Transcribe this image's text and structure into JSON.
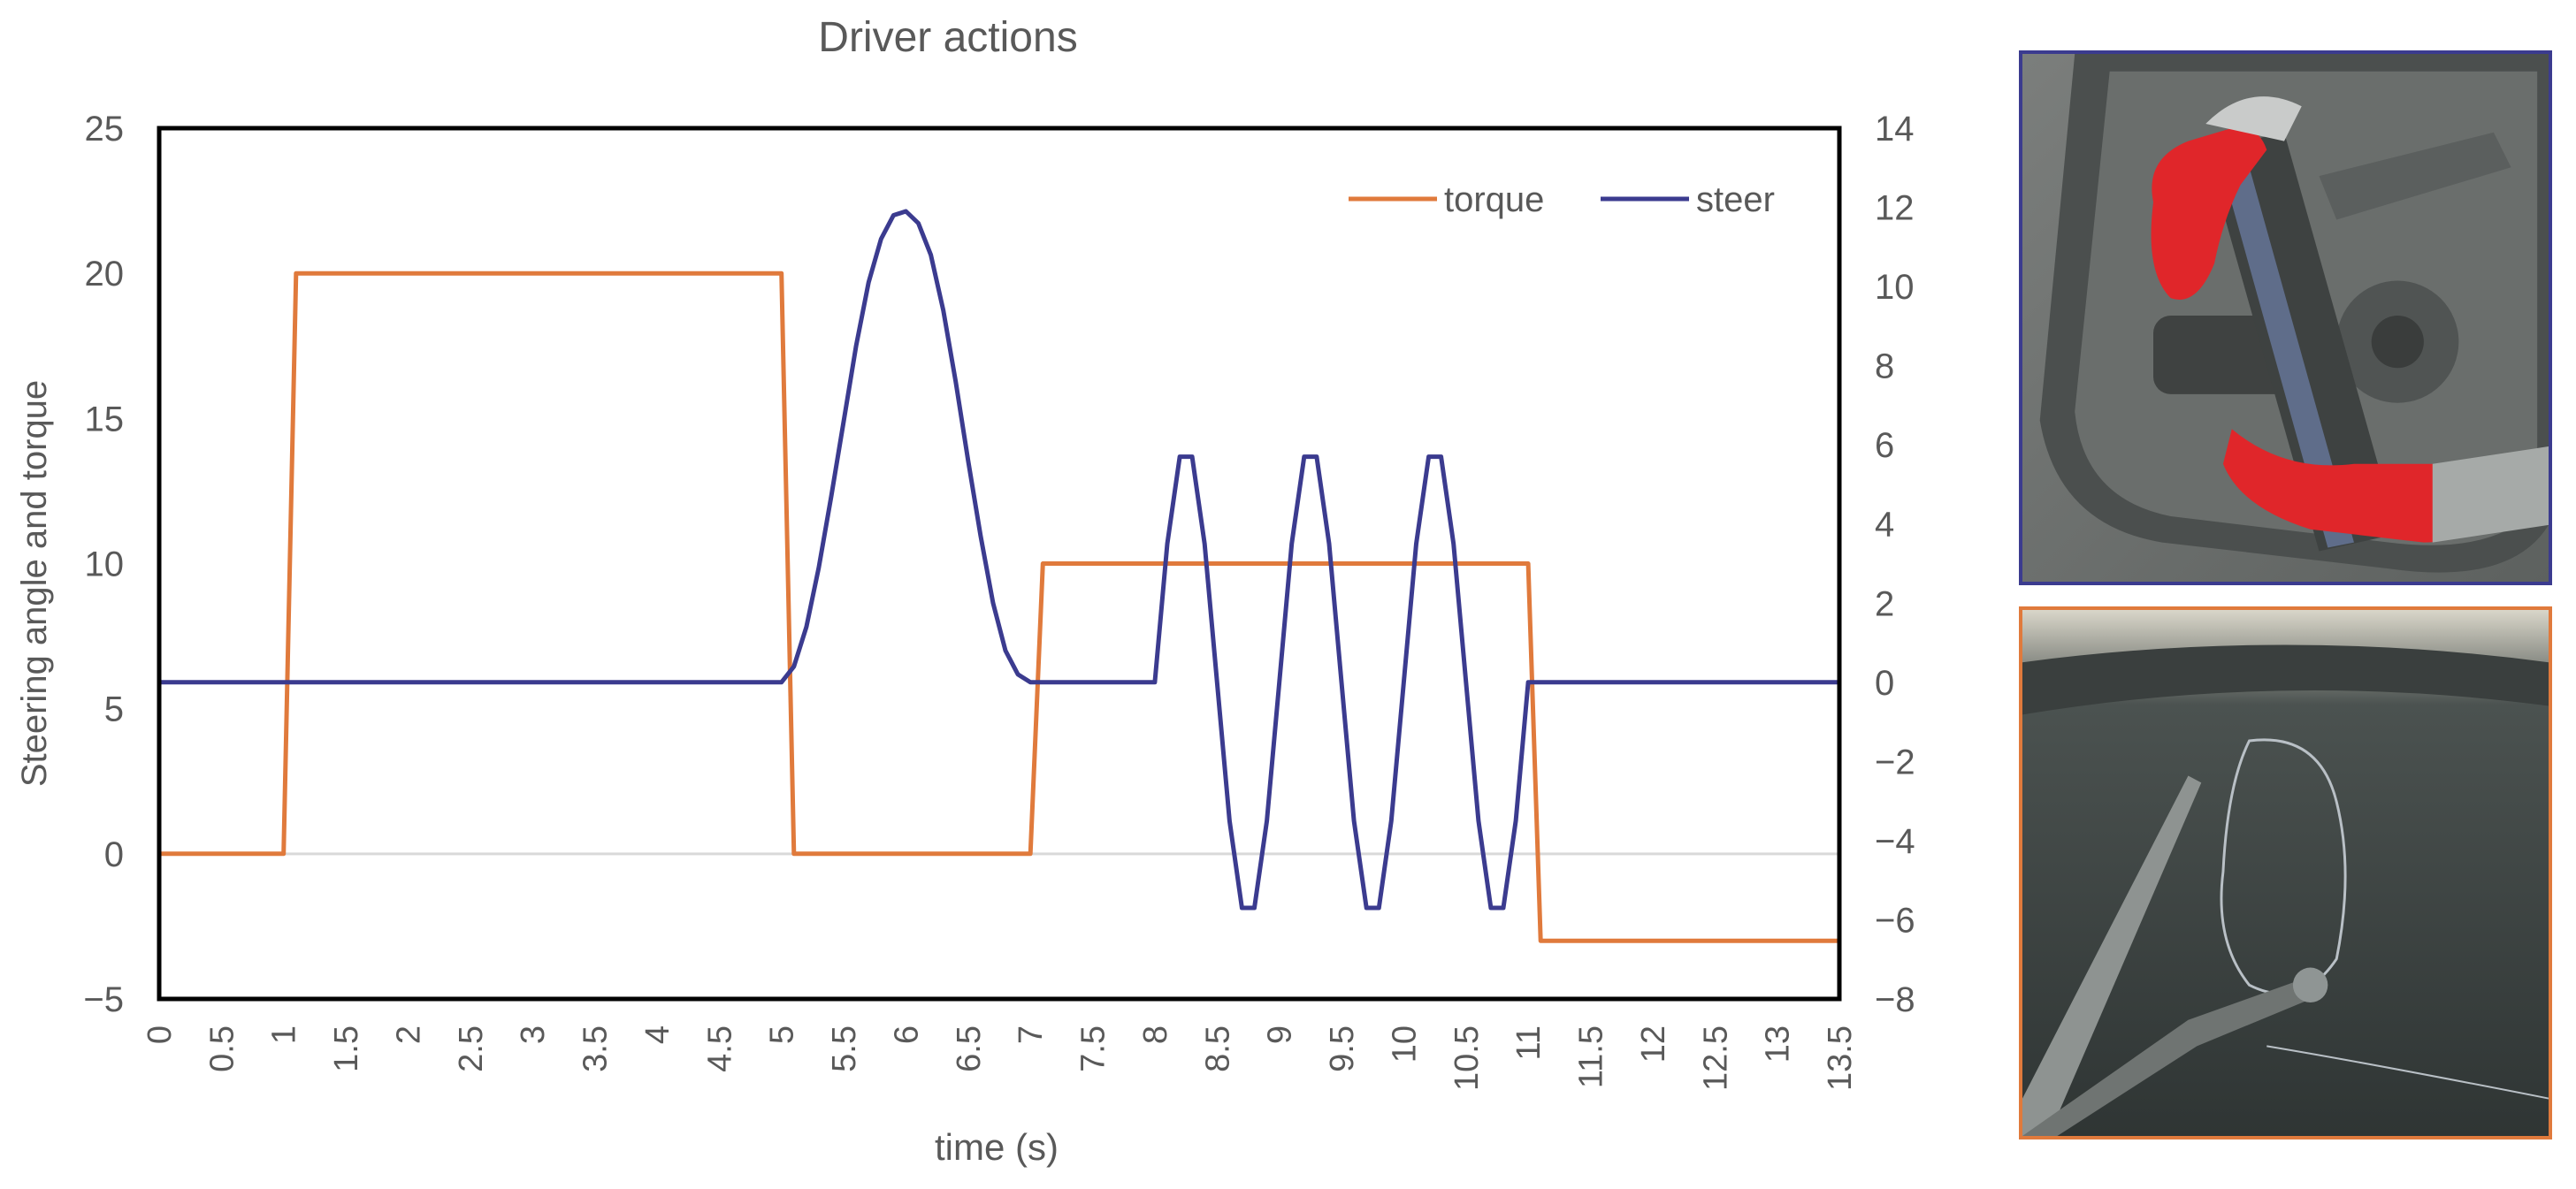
{
  "chart_data": {
    "type": "line",
    "title": "Driver actions",
    "xlabel": "time (s)",
    "ylabel": "Steering angle and torque",
    "y2label": "",
    "xlim": [
      0,
      13.5
    ],
    "ylim": [
      -5,
      25
    ],
    "y2lim": [
      -8,
      14
    ],
    "x_ticks": [
      "0",
      "0.5",
      "1",
      "1.5",
      "2",
      "2.5",
      "3",
      "3.5",
      "4",
      "4.5",
      "5",
      "5.5",
      "6",
      "6.5",
      "7",
      "7.5",
      "8",
      "8.5",
      "9",
      "9.5",
      "10",
      "10.5",
      "11",
      "11.5",
      "12",
      "12.5",
      "13",
      "13.5"
    ],
    "y_ticks": [
      "25",
      "20",
      "15",
      "10",
      "5",
      "0",
      "−5"
    ],
    "y_tick_values": [
      25,
      20,
      15,
      10,
      5,
      0,
      -5
    ],
    "y2_ticks": [
      "14",
      "12",
      "10",
      "8",
      "6",
      "4",
      "2",
      "0",
      "−2",
      "−4",
      "−6",
      "−8"
    ],
    "y2_tick_values": [
      14,
      12,
      10,
      8,
      6,
      4,
      2,
      0,
      -2,
      -4,
      -6,
      -8
    ],
    "grid": false,
    "zero_line": true,
    "legend_position": "top-right",
    "series": [
      {
        "name": "torque",
        "axis": "left",
        "color": "#e07a3c",
        "x": [
          0,
          1,
          1.1,
          5,
          5.1,
          7,
          7.1,
          11,
          11.1,
          13.5
        ],
        "y": [
          0,
          0,
          20,
          20,
          0,
          0,
          10,
          10,
          -3,
          -3
        ]
      },
      {
        "name": "steer",
        "axis": "right",
        "color": "#3b3b8f",
        "x": [
          0,
          5,
          5.1,
          5.2,
          5.3,
          5.4,
          5.5,
          5.6,
          5.7,
          5.8,
          5.9,
          6.0,
          6.1,
          6.2,
          6.3,
          6.4,
          6.5,
          6.6,
          6.7,
          6.8,
          6.9,
          7.0,
          7.1,
          8.0,
          8.1,
          8.2,
          8.3,
          8.4,
          8.5,
          8.6,
          8.7,
          8.8,
          8.9,
          9.0,
          9.1,
          9.2,
          9.3,
          9.4,
          9.5,
          9.6,
          9.7,
          9.8,
          9.9,
          10.0,
          10.1,
          10.2,
          10.3,
          10.4,
          10.5,
          10.6,
          10.7,
          10.8,
          10.9,
          11.0,
          11.1,
          13.5
        ],
        "y": [
          0,
          0,
          0.4,
          1.4,
          2.9,
          4.7,
          6.6,
          8.5,
          10.1,
          11.2,
          11.8,
          11.9,
          11.6,
          10.8,
          9.4,
          7.6,
          5.6,
          3.7,
          2.0,
          0.8,
          0.2,
          0,
          0,
          0,
          3.5,
          5.7,
          5.7,
          3.5,
          0,
          -3.5,
          -5.7,
          -5.7,
          -3.5,
          0,
          3.5,
          5.7,
          5.7,
          3.5,
          0,
          -3.5,
          -5.7,
          -5.7,
          -3.5,
          0,
          3.5,
          5.7,
          5.7,
          3.5,
          0,
          -3.5,
          -5.7,
          -5.7,
          -3.5,
          0,
          0,
          0
        ]
      }
    ]
  },
  "colors": {
    "axis": "#000000",
    "text": "#595959",
    "zero_line": "#d9d9d9"
  },
  "images": {
    "top": {
      "border_color": "#3b3b8f"
    },
    "bottom": {
      "border_color": "#e07a3c"
    }
  }
}
